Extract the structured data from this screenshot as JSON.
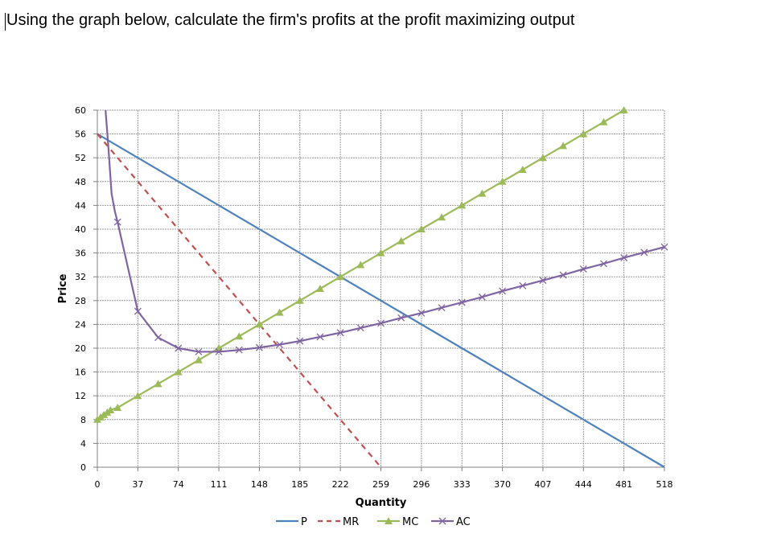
{
  "question": "Using the graph below, calculate the firm's profits at the profit maximizing output",
  "chart_data": {
    "type": "line",
    "xlabel": "Quantity",
    "ylabel": "Price",
    "xlim": [
      0,
      518
    ],
    "ylim": [
      0,
      60
    ],
    "x_ticks": [
      "0",
      "37",
      "74",
      "111",
      "148",
      "185",
      "222",
      "259",
      "296",
      "333",
      "370",
      "407",
      "444",
      "481",
      "518"
    ],
    "y_ticks": [
      "0",
      "4",
      "8",
      "12",
      "16",
      "20",
      "24",
      "28",
      "32",
      "36",
      "40",
      "44",
      "48",
      "52",
      "56",
      "60"
    ],
    "grid": true,
    "legend_position": "bottom",
    "series": [
      {
        "name": "P",
        "color": "#4f81bd",
        "style": "solid",
        "marker": "none",
        "x": [
          0,
          518
        ],
        "y": [
          56,
          0
        ]
      },
      {
        "name": "MR",
        "color": "#c0504d",
        "style": "dashed",
        "marker": "none",
        "x": [
          0,
          259
        ],
        "y": [
          56,
          0
        ]
      },
      {
        "name": "MC",
        "color": "#9bbb59",
        "style": "solid",
        "marker": "triangle",
        "x": [
          0,
          3,
          6,
          9,
          12,
          18.5,
          37,
          55.5,
          74,
          92.5,
          111,
          129.5,
          148,
          166.5,
          185,
          203.5,
          222,
          240.5,
          259,
          277.5,
          296,
          314.5,
          333,
          351.5,
          370,
          388.5,
          407,
          425.5,
          444,
          462.5,
          481
        ],
        "y": [
          8,
          8.4,
          8.8,
          9.2,
          9.6,
          10,
          12,
          14,
          16,
          18,
          20,
          22,
          24,
          26,
          28,
          30,
          32,
          34,
          36,
          38,
          40,
          42,
          44,
          46,
          48,
          50,
          52,
          54,
          56,
          58,
          60
        ]
      },
      {
        "name": "AC",
        "color": "#8064a2",
        "style": "solid",
        "marker": "x",
        "x": [
          18.5,
          37,
          55.5,
          74,
          92.5,
          111,
          129.5,
          148,
          166.5,
          185,
          203.5,
          222,
          240.5,
          259,
          277.5,
          296,
          314.5,
          333,
          351.5,
          370,
          388.5,
          407,
          425.5,
          444,
          462.5,
          481,
          499.5,
          518
        ],
        "y": [
          41.2,
          26.2,
          21.8,
          20.0,
          19.4,
          19.4,
          19.7,
          20.1,
          20.6,
          21.2,
          21.9,
          22.6,
          23.4,
          24.2,
          25.1,
          25.9,
          26.8,
          27.7,
          28.6,
          29.6,
          30.5,
          31.4,
          32.3,
          33.3,
          34.2,
          35.2,
          36.1,
          37.0
        ]
      }
    ]
  }
}
